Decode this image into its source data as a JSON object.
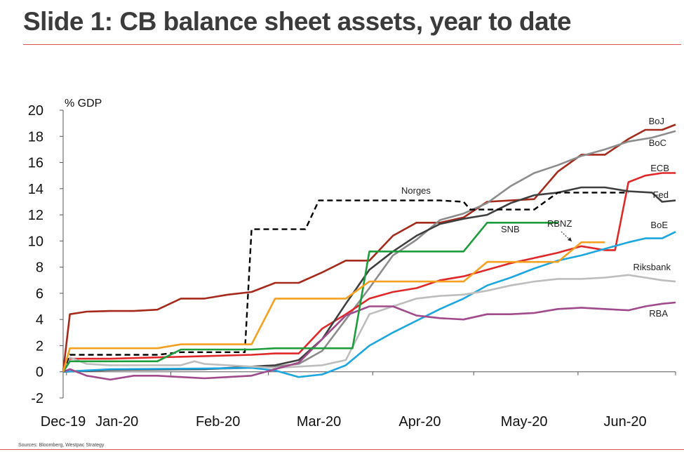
{
  "header": {
    "title": "Slide 1: CB balance sheet assets, year to date"
  },
  "footer": {
    "source": "Sources: Bloomberg, Westpac Strategy"
  },
  "chart_data": {
    "type": "line",
    "ylabel": "% GDP",
    "ylim": [
      -2,
      20
    ],
    "yticks": [
      20,
      18,
      16,
      14,
      12,
      10,
      8,
      6,
      4,
      2,
      0,
      -2
    ],
    "xlim": [
      "2019-12-31",
      "2020-06-30"
    ],
    "xticks": [
      "Dec-19",
      "Jan-20",
      "Feb-20",
      "Mar-20",
      "Apr-20",
      "May-20",
      "Jun-20"
    ],
    "grid": false,
    "legend": "inline labels at line ends",
    "series": [
      {
        "name": "BoJ",
        "color": "#a52a1c",
        "dash": false,
        "points": [
          [
            "2019-12-31",
            0
          ],
          [
            "2020-01-02",
            4.4
          ],
          [
            "2020-01-07",
            4.6
          ],
          [
            "2020-01-14",
            4.65
          ],
          [
            "2020-01-21",
            4.65
          ],
          [
            "2020-01-28",
            4.75
          ],
          [
            "2020-02-04",
            5.6
          ],
          [
            "2020-02-11",
            5.6
          ],
          [
            "2020-02-18",
            5.9
          ],
          [
            "2020-02-25",
            6.1
          ],
          [
            "2020-03-03",
            6.8
          ],
          [
            "2020-03-10",
            6.8
          ],
          [
            "2020-03-17",
            7.6
          ],
          [
            "2020-03-24",
            8.5
          ],
          [
            "2020-03-31",
            8.5
          ],
          [
            "2020-04-07",
            10.4
          ],
          [
            "2020-04-14",
            11.4
          ],
          [
            "2020-04-21",
            11.4
          ],
          [
            "2020-04-28",
            11.8
          ],
          [
            "2020-05-05",
            13.0
          ],
          [
            "2020-05-12",
            13.1
          ],
          [
            "2020-05-19",
            13.2
          ],
          [
            "2020-05-26",
            15.3
          ],
          [
            "2020-06-02",
            16.6
          ],
          [
            "2020-06-09",
            16.6
          ],
          [
            "2020-06-16",
            17.8
          ],
          [
            "2020-06-21",
            18.5
          ],
          [
            "2020-06-26",
            18.5
          ],
          [
            "2020-06-30",
            18.9
          ]
        ]
      },
      {
        "name": "BoC",
        "color": "#8c8c8c",
        "dash": false,
        "points": [
          [
            "2019-12-31",
            0
          ],
          [
            "2020-01-14",
            0.15
          ],
          [
            "2020-02-11",
            0.2
          ],
          [
            "2020-02-25",
            0.3
          ],
          [
            "2020-03-03",
            0.4
          ],
          [
            "2020-03-10",
            0.6
          ],
          [
            "2020-03-17",
            1.6
          ],
          [
            "2020-03-24",
            4.0
          ],
          [
            "2020-03-31",
            6.4
          ],
          [
            "2020-04-07",
            8.9
          ],
          [
            "2020-04-14",
            10.1
          ],
          [
            "2020-04-21",
            11.6
          ],
          [
            "2020-04-28",
            12.1
          ],
          [
            "2020-05-05",
            12.9
          ],
          [
            "2020-05-12",
            14.2
          ],
          [
            "2020-05-19",
            15.2
          ],
          [
            "2020-05-26",
            15.8
          ],
          [
            "2020-06-02",
            16.5
          ],
          [
            "2020-06-09",
            17.0
          ],
          [
            "2020-06-16",
            17.6
          ],
          [
            "2020-06-23",
            17.9
          ],
          [
            "2020-06-30",
            18.4
          ]
        ]
      },
      {
        "name": "ECB",
        "color": "#e02828",
        "dash": false,
        "points": [
          [
            "2019-12-31",
            0
          ],
          [
            "2020-01-02",
            1.0
          ],
          [
            "2020-01-14",
            1.0
          ],
          [
            "2020-01-28",
            1.1
          ],
          [
            "2020-02-11",
            1.2
          ],
          [
            "2020-02-25",
            1.3
          ],
          [
            "2020-03-03",
            1.4
          ],
          [
            "2020-03-10",
            1.4
          ],
          [
            "2020-03-17",
            3.3
          ],
          [
            "2020-03-24",
            4.4
          ],
          [
            "2020-03-31",
            5.6
          ],
          [
            "2020-04-07",
            6.1
          ],
          [
            "2020-04-14",
            6.4
          ],
          [
            "2020-04-21",
            7.0
          ],
          [
            "2020-04-28",
            7.3
          ],
          [
            "2020-05-05",
            7.8
          ],
          [
            "2020-05-12",
            8.3
          ],
          [
            "2020-05-19",
            8.7
          ],
          [
            "2020-05-26",
            9.1
          ],
          [
            "2020-06-02",
            9.6
          ],
          [
            "2020-06-09",
            9.3
          ],
          [
            "2020-06-12",
            9.3
          ],
          [
            "2020-06-16",
            14.5
          ],
          [
            "2020-06-21",
            15.0
          ],
          [
            "2020-06-26",
            15.2
          ],
          [
            "2020-06-30",
            15.2
          ]
        ]
      },
      {
        "name": "Fed",
        "color": "#3f3f3f",
        "dash": false,
        "points": [
          [
            "2019-12-31",
            0
          ],
          [
            "2020-01-14",
            0.15
          ],
          [
            "2020-02-11",
            0.2
          ],
          [
            "2020-02-25",
            0.4
          ],
          [
            "2020-03-03",
            0.5
          ],
          [
            "2020-03-10",
            0.9
          ],
          [
            "2020-03-17",
            2.5
          ],
          [
            "2020-03-24",
            5.2
          ],
          [
            "2020-03-31",
            7.8
          ],
          [
            "2020-04-07",
            9.2
          ],
          [
            "2020-04-14",
            10.4
          ],
          [
            "2020-04-21",
            11.3
          ],
          [
            "2020-04-28",
            11.7
          ],
          [
            "2020-05-05",
            12.0
          ],
          [
            "2020-05-12",
            12.9
          ],
          [
            "2020-05-19",
            13.5
          ],
          [
            "2020-05-26",
            13.7
          ],
          [
            "2020-06-02",
            14.1
          ],
          [
            "2020-06-09",
            14.1
          ],
          [
            "2020-06-16",
            13.8
          ],
          [
            "2020-06-23",
            13.7
          ],
          [
            "2020-06-26",
            13.0
          ],
          [
            "2020-06-30",
            13.1
          ]
        ]
      },
      {
        "name": "BoE",
        "color": "#1ca6e0",
        "dash": false,
        "points": [
          [
            "2019-12-31",
            0
          ],
          [
            "2020-01-14",
            0.2
          ],
          [
            "2020-02-11",
            0.25
          ],
          [
            "2020-02-25",
            0.3
          ],
          [
            "2020-03-03",
            0.1
          ],
          [
            "2020-03-10",
            -0.4
          ],
          [
            "2020-03-17",
            -0.2
          ],
          [
            "2020-03-24",
            0.5
          ],
          [
            "2020-03-31",
            2.0
          ],
          [
            "2020-04-07",
            3.0
          ],
          [
            "2020-04-14",
            3.9
          ],
          [
            "2020-04-21",
            4.8
          ],
          [
            "2020-04-28",
            5.6
          ],
          [
            "2020-05-05",
            6.6
          ],
          [
            "2020-05-12",
            7.2
          ],
          [
            "2020-05-19",
            7.9
          ],
          [
            "2020-05-26",
            8.5
          ],
          [
            "2020-06-02",
            8.9
          ],
          [
            "2020-06-09",
            9.4
          ],
          [
            "2020-06-16",
            9.9
          ],
          [
            "2020-06-21",
            10.2
          ],
          [
            "2020-06-26",
            10.2
          ],
          [
            "2020-06-30",
            10.7
          ]
        ]
      },
      {
        "name": "Riksbank",
        "color": "#bdbdbd",
        "dash": false,
        "points": [
          [
            "2019-12-31",
            0
          ],
          [
            "2020-01-02",
            1.1
          ],
          [
            "2020-01-07",
            0.6
          ],
          [
            "2020-01-14",
            0.5
          ],
          [
            "2020-01-21",
            0.5
          ],
          [
            "2020-01-28",
            0.5
          ],
          [
            "2020-02-04",
            0.5
          ],
          [
            "2020-02-08",
            0.8
          ],
          [
            "2020-02-11",
            0.6
          ],
          [
            "2020-02-25",
            0.4
          ],
          [
            "2020-03-03",
            0.3
          ],
          [
            "2020-03-10",
            0.4
          ],
          [
            "2020-03-17",
            0.5
          ],
          [
            "2020-03-24",
            0.9
          ],
          [
            "2020-03-31",
            4.4
          ],
          [
            "2020-04-07",
            5.0
          ],
          [
            "2020-04-14",
            5.6
          ],
          [
            "2020-04-21",
            5.8
          ],
          [
            "2020-04-28",
            5.9
          ],
          [
            "2020-05-05",
            6.2
          ],
          [
            "2020-05-12",
            6.6
          ],
          [
            "2020-05-19",
            6.9
          ],
          [
            "2020-05-26",
            7.1
          ],
          [
            "2020-06-02",
            7.1
          ],
          [
            "2020-06-09",
            7.2
          ],
          [
            "2020-06-16",
            7.4
          ],
          [
            "2020-06-21",
            7.2
          ],
          [
            "2020-06-26",
            7.0
          ],
          [
            "2020-06-30",
            6.9
          ]
        ]
      },
      {
        "name": "RBA",
        "color": "#a04a8c",
        "dash": false,
        "points": [
          [
            "2019-12-31",
            0
          ],
          [
            "2020-01-02",
            0.2
          ],
          [
            "2020-01-07",
            -0.3
          ],
          [
            "2020-01-14",
            -0.6
          ],
          [
            "2020-01-21",
            -0.3
          ],
          [
            "2020-01-28",
            -0.3
          ],
          [
            "2020-02-04",
            -0.4
          ],
          [
            "2020-02-11",
            -0.5
          ],
          [
            "2020-02-18",
            -0.4
          ],
          [
            "2020-02-25",
            -0.3
          ],
          [
            "2020-03-03",
            0.2
          ],
          [
            "2020-03-10",
            0.7
          ],
          [
            "2020-03-17",
            2.5
          ],
          [
            "2020-03-24",
            4.3
          ],
          [
            "2020-03-31",
            5.0
          ],
          [
            "2020-04-07",
            5.0
          ],
          [
            "2020-04-14",
            4.3
          ],
          [
            "2020-04-21",
            4.1
          ],
          [
            "2020-04-28",
            4.0
          ],
          [
            "2020-05-05",
            4.4
          ],
          [
            "2020-05-12",
            4.4
          ],
          [
            "2020-05-19",
            4.5
          ],
          [
            "2020-05-26",
            4.8
          ],
          [
            "2020-06-02",
            4.9
          ],
          [
            "2020-06-09",
            4.8
          ],
          [
            "2020-06-16",
            4.7
          ],
          [
            "2020-06-21",
            5.0
          ],
          [
            "2020-06-26",
            5.2
          ],
          [
            "2020-06-30",
            5.3
          ]
        ]
      },
      {
        "name": "Norges",
        "color": "#000000",
        "dash": true,
        "points": [
          [
            "2019-12-31",
            0
          ],
          [
            "2020-01-02",
            1.3
          ],
          [
            "2020-01-14",
            1.3
          ],
          [
            "2020-01-28",
            1.3
          ],
          [
            "2020-02-04",
            1.5
          ],
          [
            "2020-02-11",
            1.5
          ],
          [
            "2020-02-18",
            1.5
          ],
          [
            "2020-02-23",
            1.5
          ],
          [
            "2020-02-25",
            10.9
          ],
          [
            "2020-03-03",
            10.9
          ],
          [
            "2020-03-10",
            10.9
          ],
          [
            "2020-03-12",
            10.9
          ],
          [
            "2020-03-16",
            13.1
          ],
          [
            "2020-03-24",
            13.1
          ],
          [
            "2020-03-31",
            13.1
          ],
          [
            "2020-04-07",
            13.1
          ],
          [
            "2020-04-14",
            13.1
          ],
          [
            "2020-04-21",
            13.1
          ],
          [
            "2020-04-28",
            13.0
          ],
          [
            "2020-04-30",
            12.4
          ],
          [
            "2020-05-05",
            12.4
          ],
          [
            "2020-05-12",
            12.4
          ],
          [
            "2020-05-19",
            12.4
          ],
          [
            "2020-05-26",
            13.7
          ],
          [
            "2020-06-02",
            13.7
          ],
          [
            "2020-06-09",
            13.7
          ],
          [
            "2020-06-16",
            13.7
          ]
        ]
      },
      {
        "name": "SNB",
        "color": "#1d9c3b",
        "dash": false,
        "points": [
          [
            "2019-12-31",
            0
          ],
          [
            "2020-01-02",
            0.8
          ],
          [
            "2020-01-14",
            0.8
          ],
          [
            "2020-01-28",
            0.8
          ],
          [
            "2020-02-04",
            1.7
          ],
          [
            "2020-02-11",
            1.7
          ],
          [
            "2020-02-18",
            1.7
          ],
          [
            "2020-02-25",
            1.7
          ],
          [
            "2020-03-03",
            1.8
          ],
          [
            "2020-03-17",
            1.8
          ],
          [
            "2020-03-26",
            1.8
          ],
          [
            "2020-03-31",
            9.2
          ],
          [
            "2020-04-07",
            9.2
          ],
          [
            "2020-04-14",
            9.2
          ],
          [
            "2020-04-21",
            9.2
          ],
          [
            "2020-04-28",
            9.2
          ],
          [
            "2020-05-05",
            11.4
          ],
          [
            "2020-05-12",
            11.4
          ],
          [
            "2020-05-19",
            11.4
          ],
          [
            "2020-05-26",
            11.4
          ]
        ]
      },
      {
        "name": "RBNZ",
        "color": "#f5a020",
        "dash": false,
        "points": [
          [
            "2019-12-31",
            0
          ],
          [
            "2020-01-02",
            1.8
          ],
          [
            "2020-01-14",
            1.8
          ],
          [
            "2020-01-28",
            1.8
          ],
          [
            "2020-02-04",
            2.1
          ],
          [
            "2020-02-11",
            2.1
          ],
          [
            "2020-02-18",
            2.1
          ],
          [
            "2020-02-25",
            2.1
          ],
          [
            "2020-03-03",
            5.6
          ],
          [
            "2020-03-10",
            5.6
          ],
          [
            "2020-03-17",
            5.6
          ],
          [
            "2020-03-24",
            5.6
          ],
          [
            "2020-03-31",
            6.9
          ],
          [
            "2020-04-07",
            6.9
          ],
          [
            "2020-04-14",
            6.9
          ],
          [
            "2020-04-21",
            6.9
          ],
          [
            "2020-04-28",
            6.9
          ],
          [
            "2020-05-05",
            8.4
          ],
          [
            "2020-05-12",
            8.4
          ],
          [
            "2020-05-19",
            8.4
          ],
          [
            "2020-05-26",
            8.4
          ],
          [
            "2020-06-02",
            9.9
          ],
          [
            "2020-06-09",
            9.9
          ]
        ]
      }
    ],
    "annotations": [
      "RBNZ",
      "SNB",
      "Norges"
    ]
  }
}
